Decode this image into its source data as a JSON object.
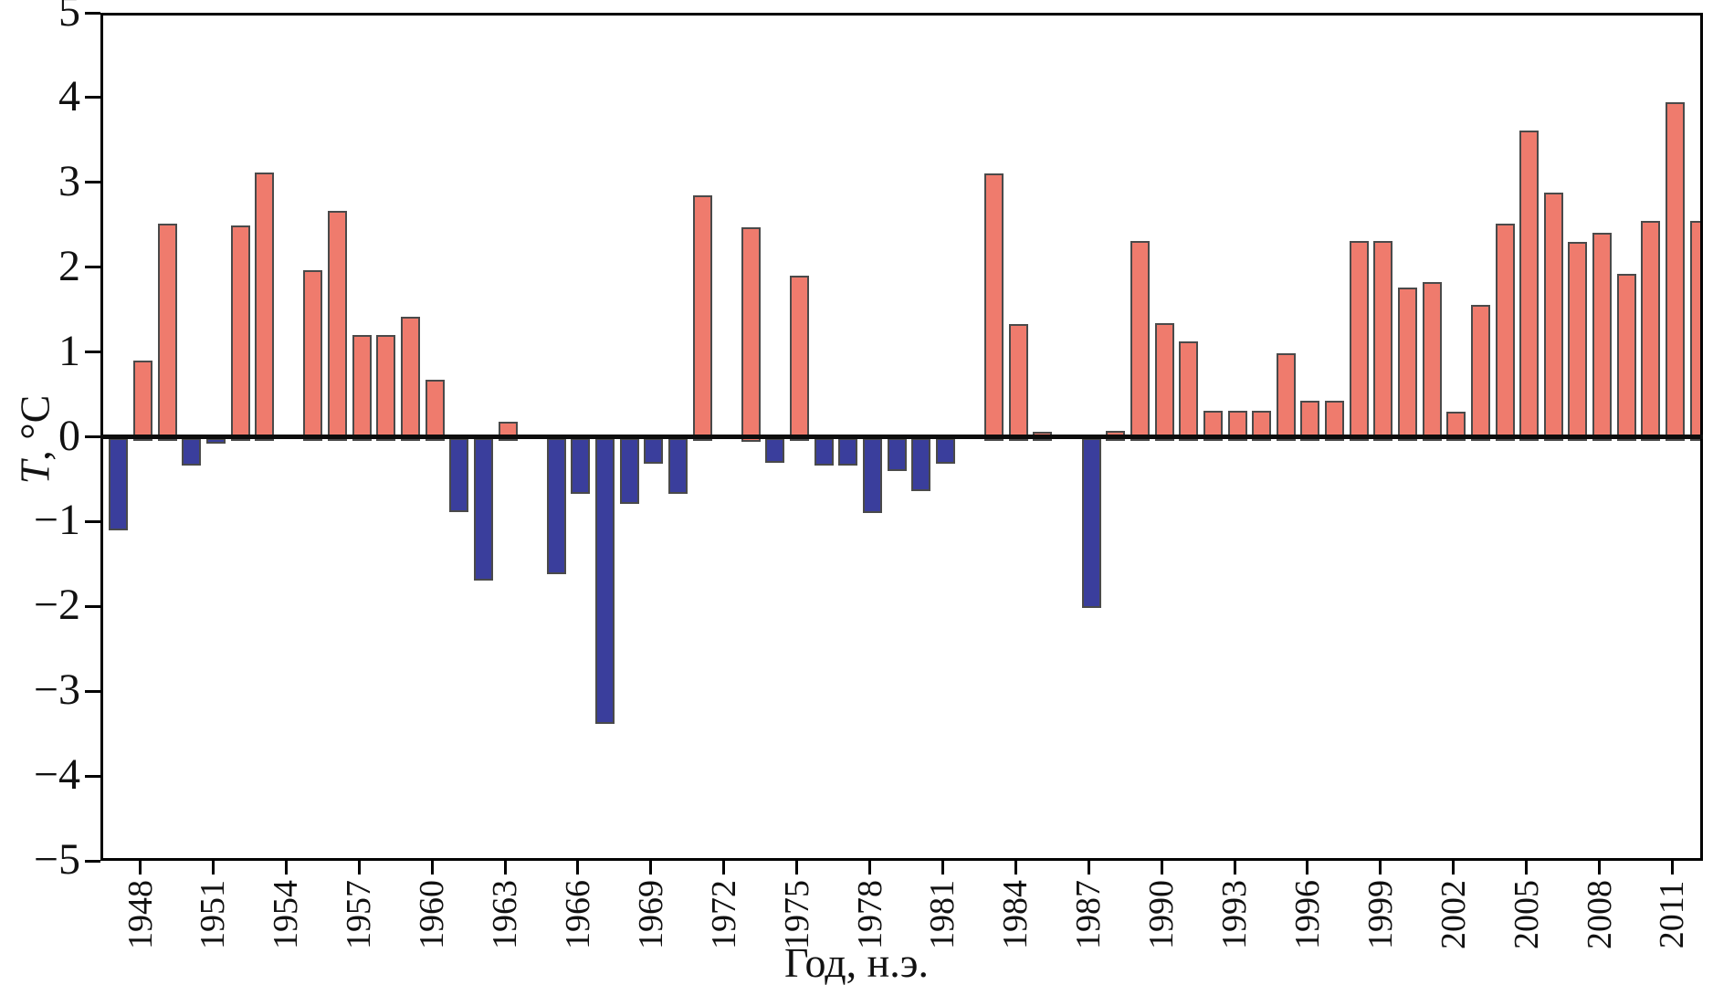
{
  "axes": {
    "ylabel_italic": "T",
    "ylabel_rest": ", °C",
    "xlabel": "Год, н.э."
  },
  "chart_data": {
    "type": "bar",
    "title": "",
    "xlabel": "Год, н.э.",
    "ylabel": "T, °C",
    "ylim": [
      -5,
      5
    ],
    "grid": false,
    "legend_position": "none",
    "positive_color": "#EF7B6D",
    "negative_color": "#3A3E9C",
    "bar_outline_color": "#4A4A4A",
    "y_tick_values": [
      5,
      4,
      3,
      2,
      1,
      0,
      -1,
      -2,
      -3,
      -4,
      -5
    ],
    "y_tick_labels": [
      "5",
      "4",
      "3",
      "2",
      "1",
      "0",
      "−1",
      "−2",
      "−3",
      "−4",
      "−5"
    ],
    "x_tick_years": [
      1948,
      1951,
      1954,
      1957,
      1960,
      1963,
      1966,
      1969,
      1972,
      1975,
      1978,
      1981,
      1984,
      1987,
      1990,
      1993,
      1996,
      1999,
      2002,
      2005,
      2008,
      2011
    ],
    "categories": [
      1947,
      1948,
      1949,
      1950,
      1951,
      1952,
      1953,
      1954,
      1955,
      1956,
      1957,
      1958,
      1959,
      1960,
      1961,
      1962,
      1963,
      1964,
      1965,
      1966,
      1967,
      1968,
      1969,
      1970,
      1971,
      1972,
      1973,
      1974,
      1975,
      1976,
      1977,
      1978,
      1979,
      1980,
      1981,
      1982,
      1983,
      1984,
      1985,
      1986,
      1987,
      1988,
      1989,
      1990,
      1991,
      1992,
      1993,
      1994,
      1995,
      1996,
      1997,
      1998,
      1999,
      2000,
      2001,
      2002,
      2003,
      2004,
      2005,
      2006,
      2007,
      2008,
      2009,
      2010,
      2011,
      2012
    ],
    "values": [
      -1.07,
      0.93,
      2.55,
      -0.31,
      -0.05,
      2.52,
      3.15,
      0,
      2.0,
      2.7,
      1.23,
      1.23,
      1.45,
      0.7,
      -0.86,
      -1.66,
      0.21,
      0,
      -1.59,
      -0.64,
      -3.35,
      -0.76,
      -0.28,
      -0.64,
      2.88,
      0,
      2.5,
      -0.27,
      1.93,
      -0.31,
      -0.31,
      -0.87,
      -0.37,
      -0.61,
      -0.28,
      0,
      3.14,
      1.36,
      0.09,
      0,
      -1.99,
      0.1,
      2.34,
      1.37,
      1.16,
      0.34,
      0.34,
      0.34,
      1.02,
      0.46,
      0.46,
      2.34,
      2.34,
      1.79,
      1.86,
      0.33,
      1.59,
      2.55,
      3.64,
      2.91,
      2.33,
      2.44,
      1.95,
      2.58,
      3.98,
      2.58
    ]
  }
}
